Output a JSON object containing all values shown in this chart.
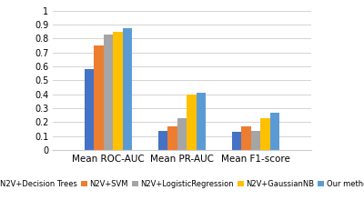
{
  "categories": [
    "Mean ROC-AUC",
    "Mean PR-AUC",
    "Mean F1-score"
  ],
  "series": [
    {
      "label": "N2V+Decision Trees",
      "color": "#4472C4",
      "values": [
        0.58,
        0.14,
        0.13
      ]
    },
    {
      "label": "N2V+SVM",
      "color": "#ED7D31",
      "values": [
        0.75,
        0.17,
        0.17
      ]
    },
    {
      "label": "N2V+LogisticRegression",
      "color": "#A5A5A5",
      "values": [
        0.83,
        0.23,
        0.14
      ]
    },
    {
      "label": "N2V+GaussianNB",
      "color": "#FFC000",
      "values": [
        0.85,
        0.4,
        0.23
      ]
    },
    {
      "label": "Our method",
      "color": "#5B9BD5",
      "values": [
        0.875,
        0.41,
        0.265
      ]
    }
  ],
  "ylim": [
    0,
    1.05
  ],
  "yticks": [
    0,
    0.1,
    0.2,
    0.3,
    0.4,
    0.5,
    0.6,
    0.7,
    0.8,
    0.9,
    1.0
  ],
  "ytick_labels": [
    "0",
    "0.1",
    "0.2",
    "0.3",
    "0.4",
    "0.5",
    "0.6",
    "0.7",
    "0.8",
    "0.9",
    "1"
  ],
  "background_color": "#FFFFFF",
  "grid_color": "#CCCCCC",
  "bar_width": 0.13,
  "group_centers": [
    0.0,
    1.0,
    2.0
  ],
  "legend_fontsize": 6.0,
  "tick_fontsize": 7,
  "xlabel_fontsize": 7.5
}
